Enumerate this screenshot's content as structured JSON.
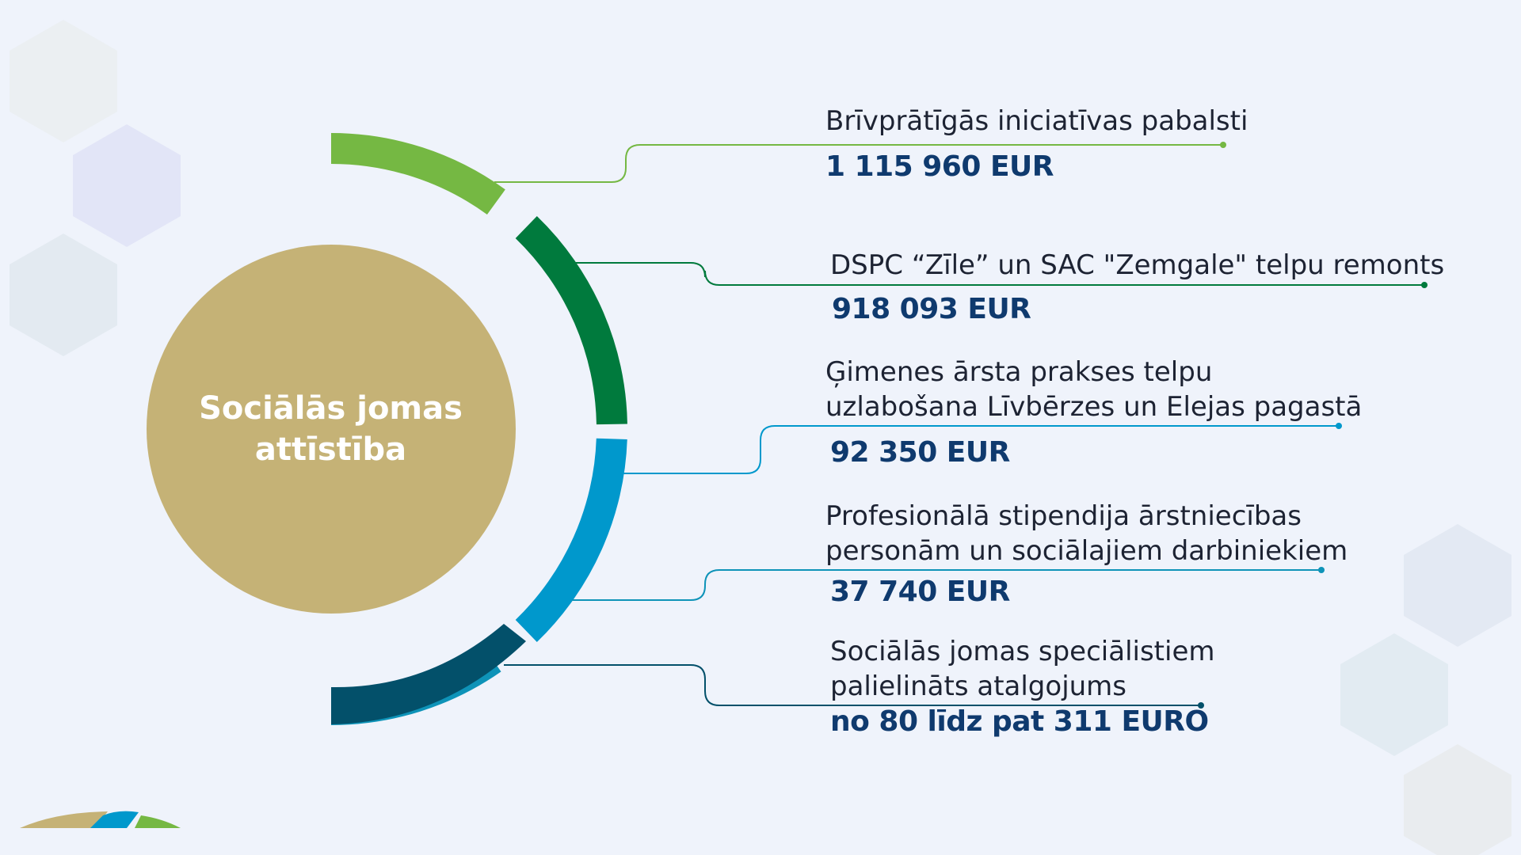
{
  "center": {
    "title_line1": "Sociālās jomas",
    "title_line2": "attīstība",
    "color": "#c5b276"
  },
  "items": [
    {
      "label_lines": [
        "Brīvprātīgās iniciatīvas pabalsti"
      ],
      "value": "1 115 960 EUR",
      "color": "#75b843"
    },
    {
      "label_lines": [
        "DSPC “Zīle” un SAC \"Zemgale\" telpu remonts"
      ],
      "value": "918 093 EUR",
      "color": "#007a3d"
    },
    {
      "label_lines": [
        "Ģimenes ārsta prakses telpu",
        "uzlabošana Līvbērzes un Elejas pagastā"
      ],
      "value": "92 350 EUR",
      "color": "#0098cc"
    },
    {
      "label_lines": [
        "Profesionālā stipendija ārstniecības",
        "personām un sociālajiem darbiniekiem"
      ],
      "value": "37 740 EUR",
      "color": "#0e93b8"
    },
    {
      "label_lines": [
        "Sociālās jomas speciālistiem",
        "palielināts atalgojums"
      ],
      "value": "no 80 līdz pat 311 EURO",
      "color": "#03506a"
    }
  ],
  "logo": {
    "colors": [
      "#c5b276",
      "#0098cc",
      "#75b843"
    ]
  }
}
